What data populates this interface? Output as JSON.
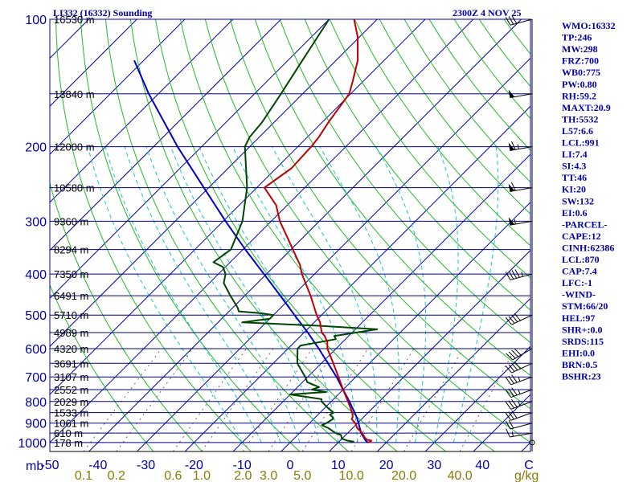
{
  "header": {
    "station": "LI332 (16332) Sounding",
    "time": "2300Z  4 NOV 25"
  },
  "indices": [
    "WMO:16332",
    "TP:246",
    "MW:298",
    "FRZ:700",
    "WB0:775",
    "PW:0.80",
    "RH:59.2",
    "MAXT:20.9",
    "TH:5532",
    "L57:6.6",
    "LCL:991",
    "LI:7.4",
    "SI:4.3",
    "TT:46",
    "KI:20",
    "SW:132",
    "EI:0.6",
    "-PARCEL-",
    "CAPE:12",
    "CINH:62386",
    "LCL:870",
    "CAP:7.4",
    "LFC:-1",
    "-WIND-",
    "STM:66/20",
    "HEL:97",
    "SHR+:0.0",
    "SRDS:115",
    "EHI:0.0",
    "BRN:0.5",
    "BSHR:23"
  ],
  "colors": {
    "frame": "#0000aa",
    "isobar": "#00008b",
    "isotherm": "#0000aa",
    "dry_adiabat": "#22bb22",
    "moist_adiabat": "#18c4ce",
    "mixing_ratio": "#7a6a5a",
    "temperature": "#c00000",
    "dewpoint": "#004400",
    "parcel": "#0000cc",
    "wind": "#000000",
    "mixing_label": "#8a7a00"
  },
  "chart_data": {
    "type": "skew-t",
    "title": "LI332 (16332) Sounding",
    "pressure_axis": {
      "label": "mb",
      "range_hpa": [
        1050,
        100
      ],
      "ticks": [
        1000,
        900,
        800,
        700,
        600,
        500,
        400,
        300,
        200,
        100
      ]
    },
    "temperature_axis": {
      "label": "C",
      "range_c": [
        -50,
        50
      ],
      "ticks": [
        -50,
        -40,
        -30,
        -20,
        -10,
        0,
        10,
        20,
        30,
        40
      ]
    },
    "mixing_ratio_axis": {
      "label": "g/kg",
      "values": [
        0.1,
        0.2,
        0.6,
        1.0,
        2.0,
        3.0,
        5.0,
        10.0,
        20.0,
        40.0
      ],
      "labels": [
        "0.1",
        "0.2",
        "0.6",
        "1.0",
        "2.0",
        "3.0",
        "5.0",
        "10.0",
        "20.0",
        "40.0"
      ]
    },
    "height_levels": [
      {
        "p": 100,
        "label": "16530 m"
      },
      {
        "p": 150,
        "label": "13840 m"
      },
      {
        "p": 200,
        "label": "12000 m"
      },
      {
        "p": 250,
        "label": "10580 m"
      },
      {
        "p": 300,
        "label": "9360 m"
      },
      {
        "p": 350,
        "label": "8294 m"
      },
      {
        "p": 400,
        "label": "7350 m"
      },
      {
        "p": 450,
        "label": "6491 m"
      },
      {
        "p": 500,
        "label": "5710 m"
      },
      {
        "p": 550,
        "label": "4989 m"
      },
      {
        "p": 600,
        "label": "4320 m"
      },
      {
        "p": 650,
        "label": "3691 m"
      },
      {
        "p": 700,
        "label": "3107 m"
      },
      {
        "p": 750,
        "label": "2552 m"
      },
      {
        "p": 800,
        "label": "2029 m"
      },
      {
        "p": 850,
        "label": "1533 m"
      },
      {
        "p": 900,
        "label": "1061 m"
      },
      {
        "p": 950,
        "label": "610 m"
      },
      {
        "p": 1000,
        "label": "178 m"
      }
    ],
    "temperature": [
      [
        1000,
        16.2
      ],
      [
        995,
        16.5
      ],
      [
        990,
        16.5
      ],
      [
        985,
        15.4
      ],
      [
        975,
        14.6
      ],
      [
        950,
        13.0
      ],
      [
        925,
        11.0
      ],
      [
        900,
        9.5
      ],
      [
        880,
        7.9
      ],
      [
        870,
        7.7
      ],
      [
        850,
        6.7
      ],
      [
        800,
        3.5
      ],
      [
        750,
        0.0
      ],
      [
        700,
        -3.6
      ],
      [
        650,
        -7.5
      ],
      [
        600,
        -11.8
      ],
      [
        580,
        -13.1
      ],
      [
        560,
        -15.0
      ],
      [
        550,
        -16.3
      ],
      [
        520,
        -18.8
      ],
      [
        500,
        -21.0
      ],
      [
        450,
        -26.3
      ],
      [
        400,
        -32.6
      ],
      [
        380,
        -35.0
      ],
      [
        350,
        -39.6
      ],
      [
        320,
        -44.6
      ],
      [
        300,
        -48.2
      ],
      [
        275,
        -52.3
      ],
      [
        250,
        -58.4
      ],
      [
        225,
        -56.8
      ],
      [
        200,
        -57.2
      ],
      [
        190,
        -57.6
      ],
      [
        175,
        -58.7
      ],
      [
        150,
        -60.3
      ],
      [
        140,
        -62.2
      ],
      [
        125,
        -65.5
      ],
      [
        110,
        -70.4
      ],
      [
        100,
        -74.8
      ]
    ],
    "dewpoint": [
      [
        1000,
        12.5
      ],
      [
        995,
        13.0
      ],
      [
        990,
        11.5
      ],
      [
        980,
        10.0
      ],
      [
        960,
        9.0
      ],
      [
        950,
        7.5
      ],
      [
        940,
        6.5
      ],
      [
        925,
        5.0
      ],
      [
        910,
        3.0
      ],
      [
        900,
        3.5
      ],
      [
        880,
        4.0
      ],
      [
        870,
        3.5
      ],
      [
        860,
        2.5
      ],
      [
        850,
        2.8
      ],
      [
        830,
        0.8
      ],
      [
        800,
        -2.0
      ],
      [
        790,
        -2.5
      ],
      [
        770,
        -10.0
      ],
      [
        760,
        -3.0
      ],
      [
        750,
        -6.5
      ],
      [
        740,
        -5.5
      ],
      [
        720,
        -9.0
      ],
      [
        700,
        -10.5
      ],
      [
        650,
        -15.0
      ],
      [
        600,
        -18.0
      ],
      [
        590,
        -18.0
      ],
      [
        570,
        -12.0
      ],
      [
        560,
        -13.0
      ],
      [
        540,
        -5.5
      ],
      [
        530,
        -18.0
      ],
      [
        520,
        -35.0
      ],
      [
        510,
        -30.0
      ],
      [
        500,
        -30.0
      ],
      [
        495,
        -33.0
      ],
      [
        490,
        -38.0
      ],
      [
        480,
        -39.0
      ],
      [
        450,
        -43.0
      ],
      [
        420,
        -47.0
      ],
      [
        400,
        -48.5
      ],
      [
        385,
        -50.5
      ],
      [
        375,
        -53.5
      ],
      [
        350,
        -52.5
      ],
      [
        300,
        -56.0
      ],
      [
        250,
        -62.0
      ],
      [
        200,
        -71.0
      ],
      [
        190,
        -72.0
      ],
      [
        175,
        -72.5
      ],
      [
        150,
        -74.5
      ],
      [
        125,
        -77.0
      ],
      [
        100,
        -80.0
      ]
    ],
    "parcel": [
      [
        1000,
        16.2
      ],
      [
        991,
        15.4
      ],
      [
        950,
        12.8
      ],
      [
        900,
        10.2
      ],
      [
        870,
        8.5
      ],
      [
        850,
        7.2
      ],
      [
        800,
        3.8
      ],
      [
        750,
        0.0
      ],
      [
        700,
        -4.0
      ],
      [
        650,
        -8.6
      ],
      [
        600,
        -13.6
      ],
      [
        550,
        -19.2
      ],
      [
        500,
        -25.6
      ],
      [
        450,
        -32.6
      ],
      [
        400,
        -40.5
      ],
      [
        350,
        -49.5
      ],
      [
        300,
        -59.5
      ],
      [
        250,
        -71.0
      ],
      [
        200,
        -85.0
      ],
      [
        150,
        -102.0
      ],
      [
        125,
        -112.0
      ]
    ],
    "wind_barbs": [
      {
        "p": 1000,
        "dir": 270,
        "spd": 0
      },
      {
        "p": 950,
        "dir": 260,
        "spd": 15
      },
      {
        "p": 900,
        "dir": 255,
        "spd": 20
      },
      {
        "p": 850,
        "dir": 250,
        "spd": 30
      },
      {
        "p": 800,
        "dir": 250,
        "spd": 35
      },
      {
        "p": 750,
        "dir": 250,
        "spd": 35
      },
      {
        "p": 700,
        "dir": 250,
        "spd": 35
      },
      {
        "p": 650,
        "dir": 245,
        "spd": 40
      },
      {
        "p": 600,
        "dir": 240,
        "spd": 40
      },
      {
        "p": 500,
        "dir": 245,
        "spd": 40
      },
      {
        "p": 400,
        "dir": 255,
        "spd": 45
      },
      {
        "p": 300,
        "dir": 260,
        "spd": 55
      },
      {
        "p": 250,
        "dir": 260,
        "spd": 60
      },
      {
        "p": 200,
        "dir": 260,
        "spd": 65
      },
      {
        "p": 150,
        "dir": 260,
        "spd": 50
      },
      {
        "p": 100,
        "dir": 255,
        "spd": 30
      }
    ]
  }
}
